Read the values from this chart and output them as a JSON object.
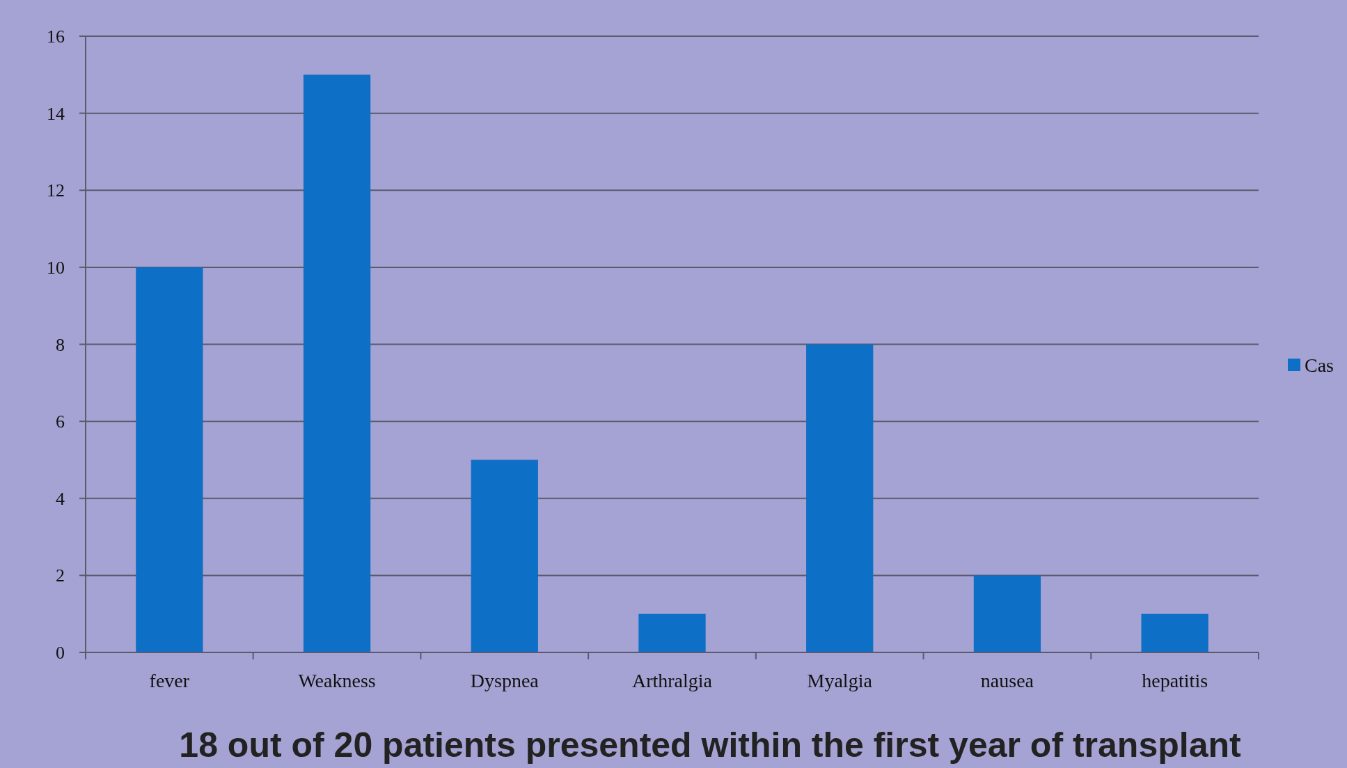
{
  "chart_data": {
    "type": "bar",
    "title": "18 out of 20 patients presented within the first year of transplant",
    "categories": [
      "fever",
      "Weakness",
      "Dyspnea",
      "Arthralgia",
      "Myalgia",
      "nausea",
      "hepatitis"
    ],
    "series": [
      {
        "name": "Cas",
        "color": "#0e6fc6",
        "values": [
          10,
          15,
          5,
          1,
          8,
          2,
          1
        ]
      }
    ],
    "ylim": [
      0,
      16
    ],
    "yticks": [
      0,
      2,
      4,
      6,
      8,
      10,
      12,
      14,
      16
    ],
    "grid": "y",
    "legend": "right"
  }
}
